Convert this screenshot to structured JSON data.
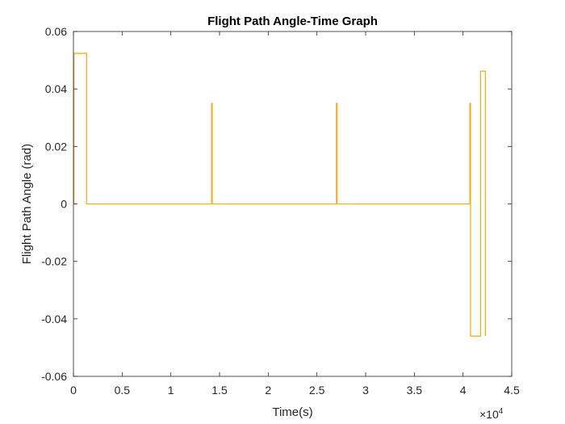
{
  "chart_data": {
    "type": "line",
    "title": "Flight Path Angle-Time Graph",
    "xlabel": "Time(s)",
    "ylabel": "Flight Path Angle (rad)",
    "x_exponent_base": "×10",
    "x_exponent_power": "4",
    "xlim": [
      0,
      4.5
    ],
    "ylim": [
      -0.06,
      0.06
    ],
    "xticks": [
      0,
      0.5,
      1,
      1.5,
      2,
      2.5,
      3,
      3.5,
      4,
      4.5
    ],
    "xtick_labels": [
      "0",
      "0.5",
      "1",
      "1.5",
      "2",
      "2.5",
      "3",
      "3.5",
      "4",
      "4.5"
    ],
    "yticks": [
      -0.06,
      -0.04,
      -0.02,
      0,
      0.02,
      0.04,
      0.06
    ],
    "ytick_labels": [
      "-0.06",
      "-0.04",
      "-0.02",
      "0",
      "0.02",
      "0.04",
      "0.06"
    ],
    "grid": false,
    "line_color": "#EDB120",
    "series": [
      {
        "x": [
          0,
          0.005,
          0.005,
          0.135,
          0.135,
          1.418,
          1.418,
          1.425,
          1.425,
          2.7,
          2.7,
          2.707,
          2.707,
          4.07,
          4.07,
          4.077,
          4.077,
          4.18,
          4.18,
          4.23,
          4.23
        ],
        "y": [
          0,
          0,
          0.0524,
          0.0524,
          0,
          0,
          0.035,
          0.035,
          0,
          0,
          0.035,
          0.035,
          0,
          0,
          0.035,
          0.035,
          -0.046,
          -0.046,
          0.0462,
          0.0462,
          -0.046
        ]
      }
    ]
  }
}
